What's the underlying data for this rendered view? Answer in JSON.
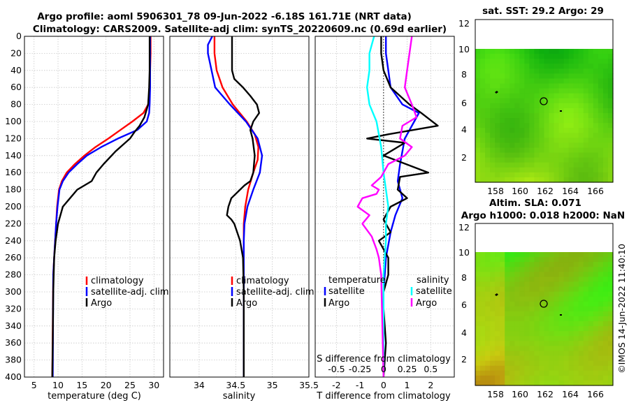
{
  "title": {
    "line1": "Argo profile: aoml 5906301_78 09-Jun-2022 -6.18S 161.71E (NRT data)",
    "line2": "Climatology: CARS2009. Satellite-adj clim: synTS_20220609.nc (0.69d earlier)"
  },
  "depth_axis": {
    "range": [
      0,
      400
    ],
    "ticks": [
      0,
      20,
      40,
      60,
      80,
      100,
      120,
      140,
      160,
      180,
      200,
      220,
      240,
      260,
      280,
      300,
      320,
      340,
      360,
      380,
      400
    ]
  },
  "chart_data": [
    {
      "id": "temperature",
      "type": "line",
      "xlabel": "temperature (deg C)",
      "ylabel": "",
      "xlim": [
        3,
        32
      ],
      "ylim": [
        400,
        0
      ],
      "xticks": [
        5,
        10,
        15,
        20,
        25,
        30
      ],
      "legend": {
        "placement": "lower-right",
        "items": [
          {
            "label": "climatology",
            "color": "#ff0000"
          },
          {
            "label": "satellite-adj. clim",
            "color": "#0000ff"
          },
          {
            "label": "Argo",
            "color": "#000000"
          }
        ]
      },
      "series": [
        {
          "name": "climatology",
          "color": "#ff0000",
          "x": [
            29.3,
            29.3,
            29.2,
            29.1,
            28.8,
            27.8,
            25.5,
            23.0,
            20.5,
            17.8,
            15.5,
            13.5,
            11.8,
            10.8,
            10.2,
            9.8,
            9.6,
            9.4,
            9.2,
            9.0,
            8.8
          ],
          "y": [
            0,
            20,
            40,
            60,
            80,
            90,
            100,
            110,
            120,
            130,
            140,
            150,
            160,
            170,
            180,
            200,
            220,
            240,
            260,
            280,
            400
          ]
        },
        {
          "name": "satellite-adj. clim",
          "color": "#0000ff",
          "x": [
            29.2,
            29.2,
            29.2,
            29.2,
            29.1,
            29.0,
            28.5,
            26.5,
            22.5,
            19.0,
            16.0,
            14.0,
            12.2,
            11.0,
            10.3,
            9.9,
            9.6,
            9.4,
            9.2,
            9.0,
            8.9
          ],
          "y": [
            0,
            20,
            40,
            60,
            80,
            90,
            100,
            110,
            120,
            130,
            140,
            150,
            160,
            170,
            180,
            200,
            220,
            240,
            260,
            280,
            400
          ]
        },
        {
          "name": "Argo",
          "color": "#000000",
          "x": [
            29.1,
            29.1,
            29.1,
            29.0,
            28.8,
            28.0,
            27.0,
            26.0,
            25.0,
            24.0,
            22.0,
            19.5,
            18.0,
            17.0,
            14.0,
            12.5,
            11.0,
            10.0,
            9.5,
            9.2,
            9.0,
            8.9,
            8.8
          ],
          "y": [
            0,
            20,
            40,
            60,
            80,
            95,
            105,
            112,
            120,
            125,
            135,
            150,
            160,
            170,
            180,
            190,
            200,
            220,
            240,
            260,
            300,
            360,
            400
          ]
        }
      ]
    },
    {
      "id": "salinity",
      "type": "line",
      "xlabel": "salinity",
      "ylabel": "",
      "xlim": [
        33.6,
        35.5
      ],
      "ylim": [
        400,
        0
      ],
      "xticks": [
        34,
        34.5,
        35,
        35.5
      ],
      "legend": {
        "placement": "lower-right",
        "items": [
          {
            "label": "climatology",
            "color": "#ff0000"
          },
          {
            "label": "satellite-adj. clim",
            "color": "#0000ff"
          },
          {
            "label": "Argo",
            "color": "#000000"
          }
        ]
      },
      "series": [
        {
          "name": "climatology",
          "color": "#ff0000",
          "x": [
            34.21,
            34.21,
            34.24,
            34.32,
            34.46,
            34.65,
            34.76,
            34.81,
            34.8,
            34.74,
            34.67,
            34.63,
            34.61,
            34.61,
            34.61,
            34.61
          ],
          "y": [
            0,
            20,
            40,
            60,
            80,
            100,
            115,
            130,
            145,
            160,
            180,
            200,
            220,
            250,
            300,
            400
          ]
        },
        {
          "name": "satellite-adj. clim",
          "color": "#0000ff",
          "x": [
            34.18,
            34.12,
            34.12,
            34.22,
            34.42,
            34.64,
            34.8,
            34.86,
            34.83,
            34.74,
            34.66,
            34.62,
            34.61,
            34.61,
            34.61,
            34.61
          ],
          "y": [
            0,
            10,
            20,
            60,
            80,
            100,
            120,
            140,
            160,
            180,
            200,
            220,
            240,
            260,
            300,
            400
          ]
        },
        {
          "name": "Argo",
          "color": "#000000",
          "x": [
            34.45,
            34.45,
            34.45,
            34.48,
            34.6,
            34.7,
            34.79,
            34.82,
            34.74,
            34.7,
            34.73,
            34.76,
            34.74,
            34.7,
            34.62,
            34.56,
            34.44,
            34.4,
            34.38,
            34.44,
            34.48,
            34.56,
            34.6,
            34.61,
            34.61,
            34.61
          ],
          "y": [
            0,
            20,
            40,
            50,
            60,
            70,
            80,
            90,
            100,
            110,
            120,
            140,
            160,
            170,
            175,
            180,
            190,
            200,
            210,
            215,
            220,
            240,
            260,
            300,
            360,
            400
          ]
        }
      ]
    },
    {
      "id": "difference",
      "type": "line",
      "xlabel": "T difference from climatology",
      "xlabel_top": "S difference from climatology",
      "ylabel": "",
      "xlim": [
        -2.9,
        3.0
      ],
      "ylim": [
        400,
        0
      ],
      "xticks": [
        -2,
        -1,
        0,
        1,
        2
      ],
      "xticks_top_labels": [
        "-0.5",
        "-0.25",
        "0",
        "0.25",
        "0.5"
      ],
      "legend": {
        "placement": "lower-center",
        "items": [
          {
            "label": "temperature",
            "color": ""
          },
          {
            "label": "satellite",
            "color": "#0000ff"
          },
          {
            "label": "Argo",
            "color": "#000000"
          },
          {
            "label": "salinity",
            "color": ""
          },
          {
            "label": "satellite",
            "color": "#00ffff"
          },
          {
            "label": "Argo",
            "color": "#ff00ff"
          }
        ]
      },
      "series": [
        {
          "name": "temperature satellite",
          "color": "#0000ff",
          "x": [
            0.1,
            0.1,
            0.2,
            0.3,
            0.8,
            1.5,
            1.3,
            0.9,
            0.7,
            0.6,
            0.8,
            0.5,
            0.3,
            0.1,
            0.0,
            0.0
          ],
          "y": [
            0,
            20,
            40,
            60,
            80,
            90,
            100,
            120,
            150,
            170,
            190,
            210,
            230,
            260,
            300,
            400
          ]
        },
        {
          "name": "temperature Argo",
          "color": "#000000",
          "x": [
            -0.1,
            -0.1,
            0.0,
            0.3,
            1.1,
            1.6,
            2.3,
            0.2,
            -0.7,
            0.9,
            0.0,
            1.9,
            0.7,
            0.6,
            1.0,
            0.3,
            0.0,
            0.3,
            -0.2,
            0.2,
            0.2,
            0.0,
            0.0,
            0.1,
            0.0
          ],
          "y": [
            0,
            20,
            40,
            60,
            80,
            90,
            105,
            115,
            120,
            125,
            140,
            160,
            165,
            180,
            190,
            200,
            215,
            230,
            240,
            260,
            280,
            300,
            320,
            360,
            400
          ]
        },
        {
          "name": "salinity satellite",
          "color": "#00ffff",
          "x": [
            -0.4,
            -0.5,
            -0.6,
            -0.6,
            -0.7,
            -0.6,
            -0.3,
            -0.1,
            0.0,
            0.1,
            0.2,
            0.1,
            0.1,
            0.0,
            0.0
          ],
          "y": [
            0,
            10,
            20,
            40,
            60,
            80,
            100,
            130,
            160,
            180,
            200,
            220,
            240,
            280,
            400
          ]
        },
        {
          "name": "salinity Argo",
          "color": "#ff00ff",
          "x": [
            1.2,
            1.1,
            1.0,
            0.9,
            1.2,
            1.4,
            0.8,
            0.7,
            1.2,
            0.9,
            0.2,
            -0.1,
            -0.5,
            -0.2,
            -0.3,
            -0.9,
            -1.1,
            -0.6,
            -0.9,
            -0.5,
            -0.3,
            -0.2,
            -0.1,
            0.0
          ],
          "y": [
            0,
            20,
            40,
            60,
            80,
            95,
            105,
            120,
            130,
            140,
            150,
            165,
            175,
            180,
            185,
            190,
            200,
            210,
            220,
            235,
            250,
            260,
            280,
            400
          ]
        }
      ]
    }
  ],
  "maps": {
    "sst": {
      "title": "sat. SST: 29.2 Argo: 29",
      "xticks": [
        "158",
        "160",
        "162",
        "164",
        "166"
      ],
      "yticks": [
        "2",
        "4",
        "6",
        "8",
        "10",
        "12"
      ]
    },
    "sla": {
      "title1": "Altim. SLA: 0.071",
      "title2": "Argo h1000: 0.018 h2000: NaN",
      "xticks": [
        "158",
        "160",
        "162",
        "164",
        "166"
      ],
      "yticks": [
        "2",
        "4",
        "6",
        "8",
        "10",
        "12"
      ]
    }
  },
  "credit": "©IMOS 14-Jun-2022 11:40:10"
}
